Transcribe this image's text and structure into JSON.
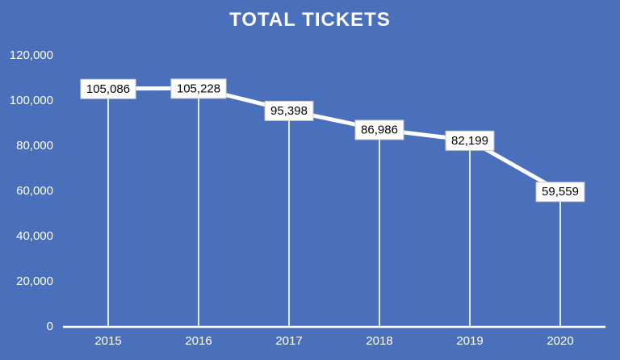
{
  "chart_data": {
    "type": "line",
    "title": "TOTAL TICKETS",
    "categories": [
      "2015",
      "2016",
      "2017",
      "2018",
      "2019",
      "2020"
    ],
    "values": [
      105086,
      105228,
      95398,
      86986,
      82199,
      59559
    ],
    "value_labels": [
      "105,086",
      "105,228",
      "95,398",
      "86,986",
      "82,199",
      "59,559"
    ],
    "ylim": [
      0,
      120000
    ],
    "yticks": [
      {
        "value": 0,
        "label": "0"
      },
      {
        "value": 20000,
        "label": "20,000"
      },
      {
        "value": 40000,
        "label": "40,000"
      },
      {
        "value": 60000,
        "label": "60,000"
      },
      {
        "value": 80000,
        "label": "80,000"
      },
      {
        "value": 100000,
        "label": "100,000"
      },
      {
        "value": 120000,
        "label": "120,000"
      }
    ],
    "grid": false,
    "legend": "none",
    "colors": {
      "background": "#4A70BC",
      "line": "#FFFFFF",
      "drop_line": "#FFFFFF",
      "axis_line": "#FFFFFF",
      "axis_text": "#FFFFFF",
      "title_text": "#FFFFFF",
      "label_box_fill": "#FFFFFF",
      "label_box_border": "#C8C8C8",
      "label_text": "#000000"
    }
  }
}
